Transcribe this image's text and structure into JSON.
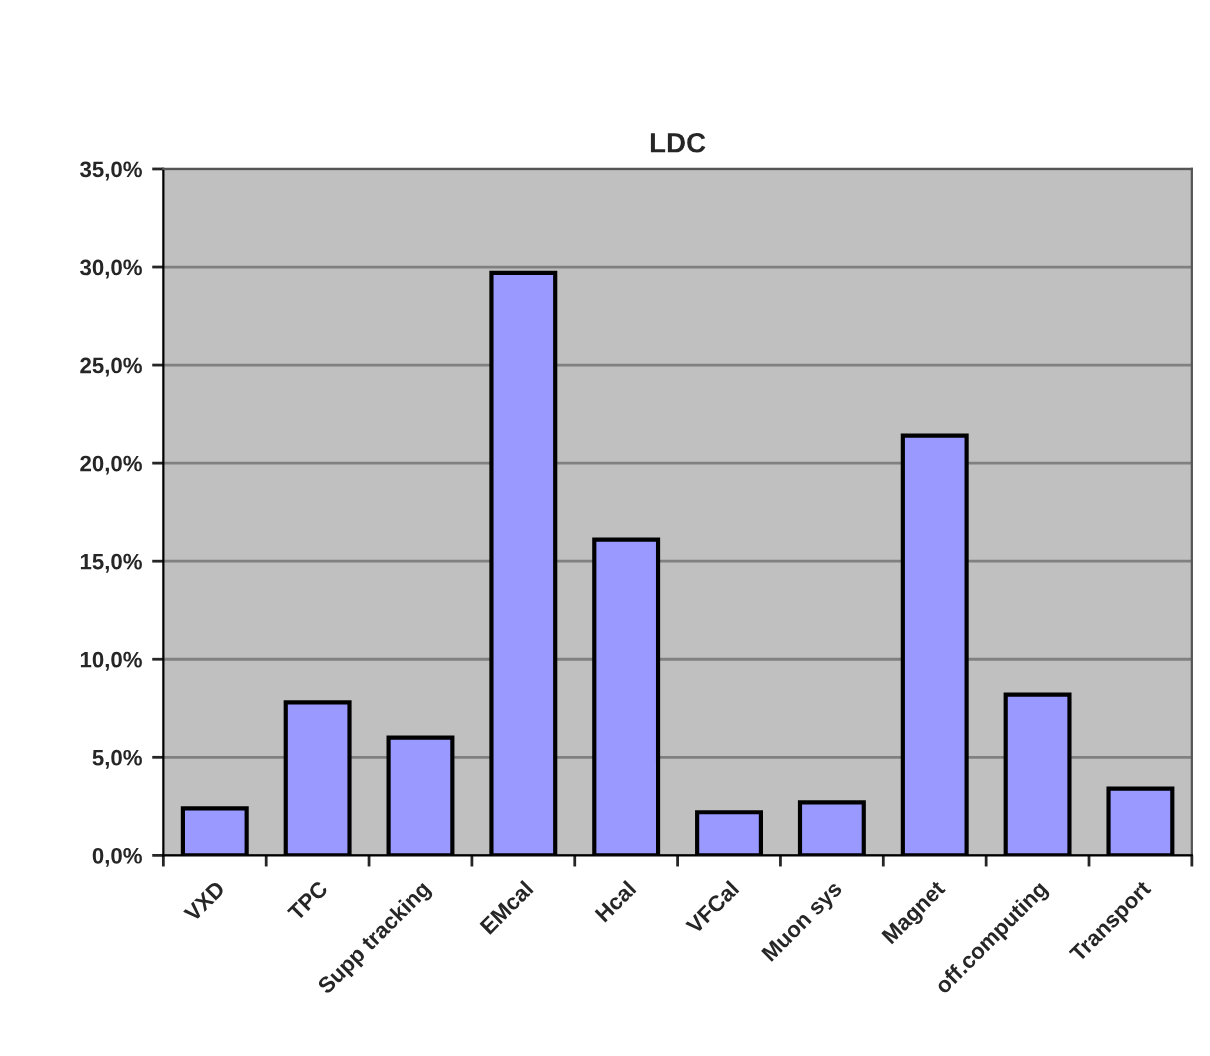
{
  "chart_data": {
    "type": "bar",
    "title": "LDC",
    "categories": [
      "VXD",
      "TPC",
      "Supp tracking",
      "EMcal",
      "Hcal",
      "VFCal",
      "Muon sys",
      "Magnet",
      "off.computing",
      "Transport"
    ],
    "values": [
      2.4,
      7.8,
      6.0,
      29.7,
      16.1,
      2.2,
      2.7,
      21.4,
      8.2,
      3.4
    ],
    "color": "#9999ff",
    "ylim": [
      0,
      35
    ],
    "yticks": [
      {
        "value": 0,
        "label": "0,0%"
      },
      {
        "value": 5,
        "label": "5,0%"
      },
      {
        "value": 10,
        "label": "10,0%"
      },
      {
        "value": 15,
        "label": "15,0%"
      },
      {
        "value": 20,
        "label": "20,0%"
      },
      {
        "value": 25,
        "label": "25,0%"
      },
      {
        "value": 30,
        "label": "30,0%"
      },
      {
        "value": 35,
        "label": "35,0%"
      }
    ],
    "grid": "y"
  }
}
